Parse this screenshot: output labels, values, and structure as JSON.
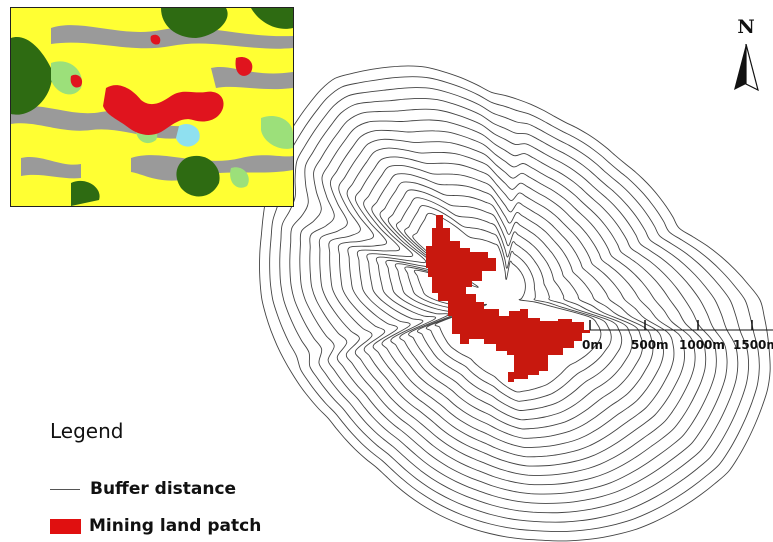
{
  "map": {
    "north_label": "N",
    "north_arrow_icon": "north-arrow-icon",
    "buffer_ring_count": 17,
    "scale_bar": {
      "labels": [
        "0m",
        "500m",
        "1000m",
        "1500m"
      ]
    },
    "colors": {
      "buffer_line": "#444444",
      "mining_patch": "#c8180e",
      "inset_yellow": "#ffff33",
      "inset_green": "#2e6b12",
      "inset_lightgreen": "#9ce07a",
      "inset_gray": "#9a9a9a",
      "inset_cyan": "#8fe0f0",
      "inset_red": "#e0141e"
    }
  },
  "legend": {
    "title": "Legend",
    "items": [
      {
        "label": "Buffer distance",
        "symbol": "line"
      },
      {
        "label": "Mining land patch",
        "symbol": "swatch"
      }
    ]
  }
}
